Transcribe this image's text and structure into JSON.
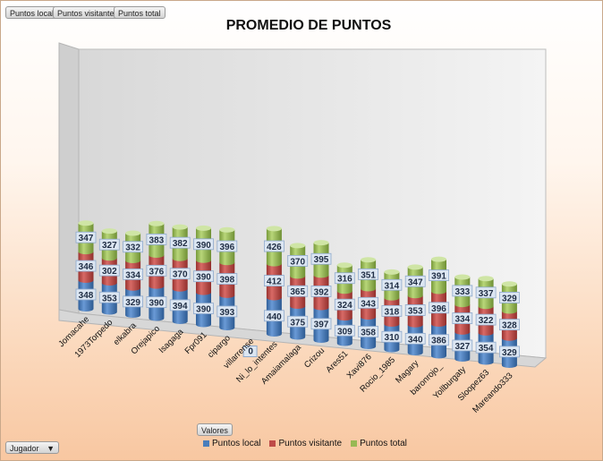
{
  "filters": {
    "top": [
      "Puntos local",
      "Puntos visitante",
      "Puntos total"
    ],
    "values_button": "Valores",
    "axis_button": "Jugador"
  },
  "colors": {
    "local": "#4a7ebb",
    "visitante": "#be4b48",
    "total": "#98b954"
  },
  "chart_data": {
    "type": "bar",
    "stacked": true,
    "title": "PROMEDIO DE PUNTOS",
    "categories": [
      "Jomacahe",
      "1973Torpedo",
      "elkabra",
      "Orejapico",
      "Isagaga",
      "Fpr091",
      "cipargo",
      "villarrense",
      "Ni_lo_intentes",
      "Amaiamalaga",
      "Crizou",
      "Ares51",
      "Xavi876",
      "Rocio_1985",
      "Magary",
      "baronrojo_",
      "Yollburgaty",
      "Sloopez63",
      "Mareando333"
    ],
    "series": [
      {
        "name": "Puntos local",
        "values": [
          348,
          353,
          329,
          390,
          394,
          390,
          393,
          0,
          440,
          375,
          397,
          309,
          358,
          310,
          340,
          386,
          327,
          354,
          329
        ]
      },
      {
        "name": "Puntos visitante",
        "values": [
          346,
          302,
          334,
          376,
          370,
          390,
          398,
          0,
          412,
          365,
          392,
          324,
          343,
          318,
          353,
          396,
          334,
          322,
          328
        ]
      },
      {
        "name": "Puntos total",
        "values": [
          347,
          327,
          332,
          383,
          382,
          390,
          396,
          0,
          426,
          370,
          395,
          316,
          351,
          314,
          347,
          391,
          333,
          337,
          329
        ]
      }
    ],
    "xlabel": "",
    "ylabel": "",
    "legend_position": "bottom"
  }
}
